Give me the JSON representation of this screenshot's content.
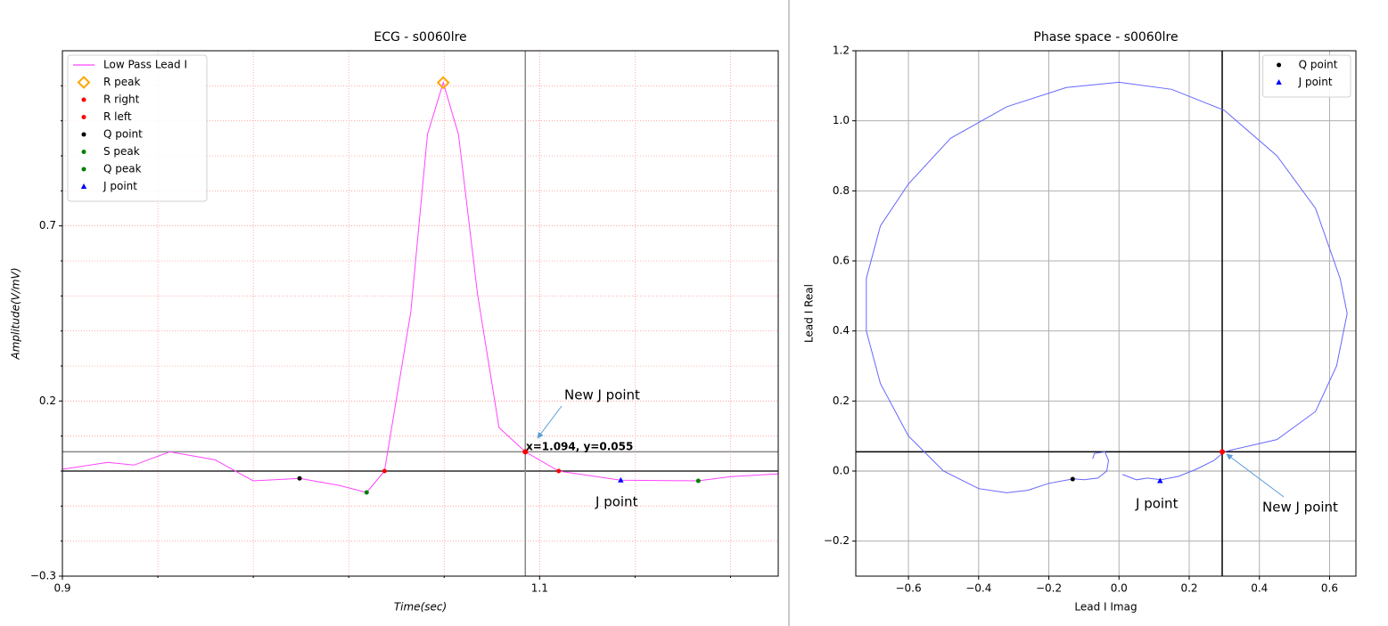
{
  "chart_data": [
    {
      "type": "line",
      "title": "ECG - s0060lre",
      "xlabel": "Time(sec)",
      "ylabel": "Amplitude(V/mV)",
      "xlim": [
        0.9,
        1.2
      ],
      "ylim": [
        -0.3,
        1.2
      ],
      "xticks": [
        0.9,
        1.1
      ],
      "yticks": [
        {
          "value": -0.3,
          "label": "−0.3"
        },
        0.2,
        0.7
      ],
      "xticks_minor": [
        0.94,
        0.98,
        1.02,
        1.06,
        1.14,
        1.18
      ],
      "yticks_minor": [
        -0.2,
        -0.1,
        0,
        0.1,
        0.3,
        0.4,
        0.5,
        0.6,
        0.8,
        0.9,
        1.0,
        1.1
      ],
      "grid": true,
      "grid_color": "#ff9a9a",
      "grid_style": "dotted",
      "legend": "upper left",
      "hline": 0,
      "hline_color": "#000000",
      "cursor": {
        "x": 1.094,
        "y": 0.055,
        "label": "x=1.094, y=0.055",
        "line_color": "#888888",
        "point_color": "#ff0000"
      },
      "annotations": [
        "New J point",
        "J point"
      ],
      "series": [
        {
          "name": "Low Pass Lead I",
          "color": "#ff44ff",
          "marker": "line",
          "x": [
            0.9,
            0.919,
            0.93,
            0.945,
            0.964,
            0.98,
            0.9994,
            1.016,
            1.0275,
            1.035,
            1.046,
            1.053,
            1.0596,
            1.066,
            1.074,
            1.083,
            1.094,
            1.108,
            1.134,
            1.1665,
            1.18,
            1.2
          ],
          "values": [
            0.005,
            0.025,
            0.017,
            0.055,
            0.032,
            -0.028,
            -0.021,
            -0.041,
            -0.061,
            0.0,
            0.454,
            0.961,
            1.109,
            0.961,
            0.505,
            0.124,
            0.055,
            0.0,
            -0.026,
            -0.028,
            -0.016,
            -0.008
          ]
        },
        {
          "name": "R peak",
          "color": "#ffa500",
          "marker": "diamond",
          "x": [
            1.0596
          ],
          "values": [
            1.109
          ]
        },
        {
          "name": "R right",
          "color": "#ff0000",
          "marker": "circle",
          "x": [
            1.108
          ],
          "values": [
            0.0
          ]
        },
        {
          "name": "R left",
          "color": "#ff0000",
          "marker": "circle",
          "x": [
            1.035
          ],
          "values": [
            0.0
          ]
        },
        {
          "name": "Q point",
          "color": "#000000",
          "marker": "circle",
          "x": [
            0.9994
          ],
          "values": [
            -0.021
          ]
        },
        {
          "name": "S peak",
          "color": "#008000",
          "marker": "circle",
          "x": [
            1.0275
          ],
          "values": [
            -0.061
          ]
        },
        {
          "name": "Q peak",
          "color": "#008000",
          "marker": "circle",
          "x": [
            1.1665
          ],
          "values": [
            -0.028
          ]
        },
        {
          "name": "J point",
          "color": "#0000ff",
          "marker": "triangle",
          "x": [
            1.134
          ],
          "values": [
            -0.026
          ]
        }
      ]
    },
    {
      "type": "line",
      "title": "Phase space - s0060lre",
      "xlabel": "Lead I Imag",
      "ylabel": "Lead I Real",
      "xlim": [
        -0.75,
        0.675
      ],
      "ylim": [
        -0.3,
        1.2
      ],
      "xticks": [
        {
          "value": -0.6,
          "label": "−0.6"
        },
        {
          "value": -0.4,
          "label": "−0.4"
        },
        {
          "value": -0.2,
          "label": "−0.2"
        },
        {
          "value": 0,
          "label": "0.0"
        },
        0.2,
        0.4,
        0.6
      ],
      "yticks": [
        {
          "value": -0.2,
          "label": "−0.2"
        },
        {
          "value": 0,
          "label": "0.0"
        },
        0.2,
        0.4,
        0.6,
        0.8,
        {
          "value": 1.0,
          "label": "1.0"
        },
        1.2
      ],
      "grid": true,
      "grid_color": "#b0b0b0",
      "grid_style": "solid",
      "legend": "upper right",
      "hline": 0,
      "hline_color": "#b0b0b0",
      "cursor": {
        "x": 0.294,
        "y": 0.055,
        "line_color": "#000000",
        "point_color": "#ff0000"
      },
      "annotations": [
        "J point",
        "New J point"
      ],
      "series": [
        {
          "color": "#6666ff",
          "marker": "line",
          "x": [
            -0.075,
            -0.07,
            -0.04,
            -0.03,
            -0.035,
            -0.06,
            -0.1,
            -0.13,
            -0.2,
            -0.26,
            -0.32,
            -0.4,
            -0.5,
            -0.6,
            -0.68,
            -0.72,
            -0.72,
            -0.68,
            -0.6,
            -0.48,
            -0.32,
            -0.15,
            0.0,
            0.15,
            0.3,
            0.45,
            0.56,
            0.63,
            0.65,
            0.62,
            0.56,
            0.45,
            0.32,
            0.3,
            0.27,
            0.22,
            0.17,
            0.12,
            0.08,
            0.05,
            0.01
          ],
          "values": [
            0.035,
            0.05,
            0.055,
            0.03,
            0.0,
            -0.02,
            -0.025,
            -0.022,
            -0.035,
            -0.055,
            -0.062,
            -0.05,
            0.0,
            0.1,
            0.25,
            0.4,
            0.55,
            0.7,
            0.82,
            0.95,
            1.04,
            1.095,
            1.11,
            1.09,
            1.03,
            0.9,
            0.75,
            0.55,
            0.45,
            0.3,
            0.17,
            0.09,
            0.06,
            0.055,
            0.03,
            0.005,
            -0.015,
            -0.025,
            -0.02,
            -0.025,
            -0.01
          ]
        },
        {
          "name": "Q point",
          "color": "#000000",
          "marker": "circle",
          "x": [
            -0.132
          ],
          "values": [
            -0.023
          ]
        },
        {
          "name": "J point",
          "color": "#0000ff",
          "marker": "triangle",
          "x": [
            0.117
          ],
          "values": [
            -0.028
          ]
        }
      ]
    }
  ]
}
